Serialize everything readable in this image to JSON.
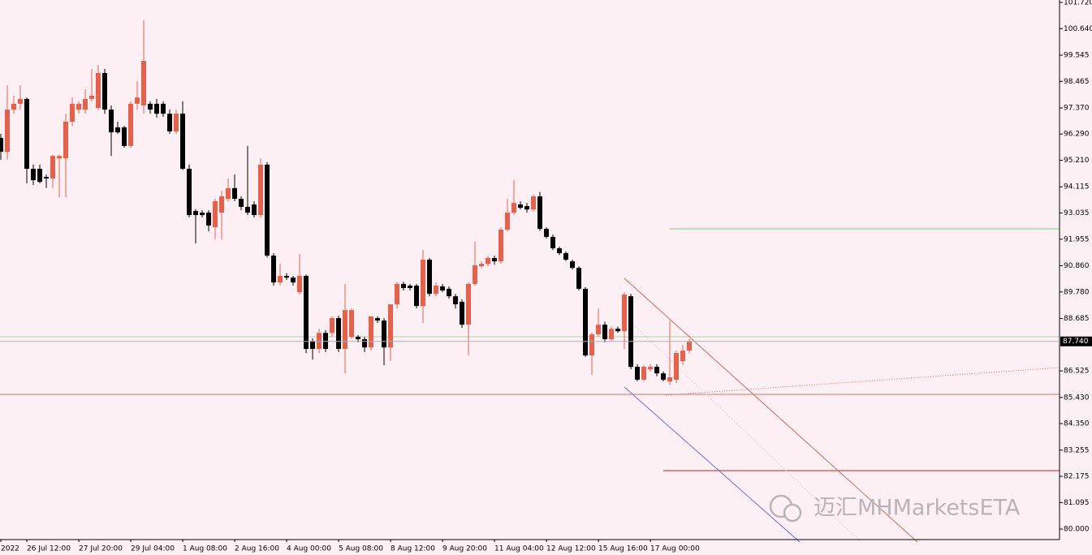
{
  "chart_data": {
    "type": "candlestick",
    "watermark": "迈汇MHMarketsETA",
    "up_color": "#e9604a",
    "down_color": "#000000",
    "ylim": [
      79.566,
      101.82
    ],
    "yticks": [
      {
        "value": 101.72,
        "label": "101.720"
      },
      {
        "value": 100.64,
        "label": "100.640"
      },
      {
        "value": 99.545,
        "label": "99.545"
      },
      {
        "value": 98.465,
        "label": "98.465"
      },
      {
        "value": 97.37,
        "label": "97.370"
      },
      {
        "value": 96.29,
        "label": "96.290"
      },
      {
        "value": 95.21,
        "label": "95.210"
      },
      {
        "value": 94.115,
        "label": "94.115"
      },
      {
        "value": 93.035,
        "label": "93.035"
      },
      {
        "value": 91.955,
        "label": "91.955"
      },
      {
        "value": 90.86,
        "label": "90.860"
      },
      {
        "value": 89.78,
        "label": "89.780"
      },
      {
        "value": 88.685,
        "label": "88.685"
      },
      {
        "value": 86.525,
        "label": "86.525"
      },
      {
        "value": 85.43,
        "label": "85.430"
      },
      {
        "value": 84.35,
        "label": "84.350"
      },
      {
        "value": 83.255,
        "label": "83.255"
      },
      {
        "value": 82.175,
        "label": "82.175"
      },
      {
        "value": 81.095,
        "label": "81.095"
      },
      {
        "value": 80.0,
        "label": "80.000"
      }
    ],
    "last_price": {
      "value": 87.74,
      "label": "87.740"
    },
    "categories": [
      "2022",
      null,
      null,
      null,
      "26 Jul 12:00",
      null,
      null,
      null,
      null,
      null,
      null,
      null,
      "27 Jul 20:00",
      null,
      null,
      null,
      null,
      null,
      null,
      null,
      "29 Jul 04:00",
      null,
      null,
      null,
      null,
      null,
      null,
      null,
      "1 Aug 08:00",
      null,
      null,
      null,
      null,
      null,
      null,
      null,
      "2 Aug 16:00",
      null,
      null,
      null,
      null,
      null,
      null,
      null,
      "4 Aug 00:00",
      null,
      null,
      null,
      null,
      null,
      null,
      null,
      "5 Aug 08:00",
      null,
      null,
      null,
      null,
      null,
      null,
      null,
      "8 Aug 12:00",
      null,
      null,
      null,
      null,
      null,
      null,
      null,
      "9 Aug 20:00",
      null,
      null,
      null,
      null,
      null,
      null,
      null,
      "11 Aug 04:00",
      null,
      null,
      null,
      null,
      null,
      null,
      null,
      "12 Aug 12:00",
      null,
      null,
      null,
      null,
      null,
      null,
      null,
      "15 Aug 16:00",
      null,
      null,
      null,
      null,
      null,
      null,
      null,
      "17 Aug 00:00",
      null,
      null,
      null,
      null,
      null,
      null
    ],
    "ohlc": [
      [
        96.13,
        96.3,
        95.23,
        95.56
      ],
      [
        95.56,
        98.31,
        95.23,
        97.3
      ],
      [
        97.3,
        97.87,
        97.13,
        97.54
      ],
      [
        97.54,
        98.31,
        97.3,
        97.74
      ],
      [
        97.74,
        97.8,
        94.26,
        94.86
      ],
      [
        94.86,
        95.03,
        94.19,
        94.39
      ],
      [
        94.86,
        95.03,
        94.26,
        94.32
      ],
      [
        94.52,
        94.62,
        94.06,
        94.46
      ],
      [
        94.46,
        95.45,
        94.06,
        95.39
      ],
      [
        95.29,
        95.45,
        93.69,
        95.39
      ],
      [
        95.29,
        97.13,
        93.69,
        96.8
      ],
      [
        96.8,
        97.8,
        96.63,
        97.54
      ],
      [
        97.3,
        97.64,
        97.13,
        97.54
      ],
      [
        97.3,
        98.14,
        97.13,
        97.74
      ],
      [
        97.74,
        98.98,
        97.64,
        97.87
      ],
      [
        97.37,
        99.14,
        97.3,
        98.81
      ],
      [
        98.81,
        98.98,
        97.13,
        97.3
      ],
      [
        97.3,
        97.47,
        95.39,
        96.36
      ],
      [
        96.57,
        96.8,
        96.3,
        96.36
      ],
      [
        96.57,
        96.63,
        95.73,
        95.8
      ],
      [
        95.8,
        97.64,
        95.73,
        97.54
      ],
      [
        97.54,
        98.47,
        97.3,
        97.8
      ],
      [
        97.47,
        100.98,
        97.13,
        99.31
      ],
      [
        97.54,
        97.64,
        97.13,
        97.3
      ],
      [
        97.54,
        97.74,
        96.97,
        97.13
      ],
      [
        97.54,
        97.64,
        97.0,
        97.13
      ],
      [
        97.13,
        97.3,
        96.3,
        96.4
      ],
      [
        96.4,
        97.3,
        96.3,
        97.13
      ],
      [
        97.13,
        97.64,
        94.8,
        94.86
      ],
      [
        94.86,
        95.03,
        92.85,
        92.95
      ],
      [
        93.12,
        93.2,
        91.78,
        92.95
      ],
      [
        93.05,
        93.15,
        92.85,
        92.95
      ],
      [
        93.05,
        93.15,
        92.28,
        92.52
      ],
      [
        92.45,
        93.62,
        91.95,
        93.52
      ],
      [
        93.05,
        93.95,
        91.95,
        93.72
      ],
      [
        93.62,
        94.46,
        93.52,
        94.06
      ],
      [
        94.06,
        94.62,
        93.52,
        93.62
      ],
      [
        93.62,
        93.72,
        93.15,
        93.29
      ],
      [
        93.29,
        95.8,
        92.95,
        93.05
      ],
      [
        93.39,
        93.52,
        92.85,
        92.95
      ],
      [
        92.95,
        95.29,
        92.85,
        95.03
      ],
      [
        95.03,
        95.13,
        91.2,
        91.28
      ],
      [
        91.28,
        91.38,
        90.04,
        90.17
      ],
      [
        90.17,
        90.94,
        90.04,
        90.44
      ],
      [
        90.44,
        90.55,
        90.27,
        90.37
      ],
      [
        90.37,
        90.44,
        90.04,
        90.17
      ],
      [
        89.77,
        91.34,
        89.67,
        90.44
      ],
      [
        90.44,
        90.5,
        87.26,
        87.43
      ],
      [
        87.76,
        87.86,
        86.99,
        87.43
      ],
      [
        87.43,
        88.26,
        87.26,
        88.09
      ],
      [
        88.09,
        88.2,
        87.3,
        87.43
      ],
      [
        88.09,
        88.77,
        87.93,
        88.7
      ],
      [
        88.7,
        88.8,
        87.3,
        87.43
      ],
      [
        87.43,
        90.11,
        86.42,
        89.03
      ],
      [
        87.93,
        89.1,
        87.83,
        89.03
      ],
      [
        87.93,
        88.0,
        87.7,
        87.83
      ],
      [
        87.83,
        87.93,
        87.3,
        87.49
      ],
      [
        87.49,
        88.77,
        87.36,
        88.77
      ],
      [
        88.7,
        88.77,
        88.5,
        88.6
      ],
      [
        88.6,
        88.7,
        86.76,
        87.49
      ],
      [
        87.49,
        89.27,
        86.93,
        89.27
      ],
      [
        89.27,
        90.2,
        89.1,
        90.11
      ],
      [
        90.11,
        90.2,
        89.84,
        89.94
      ],
      [
        90.04,
        90.11,
        89.84,
        89.94
      ],
      [
        90.04,
        90.11,
        89.1,
        89.2
      ],
      [
        89.2,
        91.51,
        88.5,
        91.11
      ],
      [
        91.11,
        91.18,
        89.6,
        89.7
      ],
      [
        89.7,
        90.17,
        89.6,
        90.04
      ],
      [
        90.01,
        90.11,
        89.77,
        89.84
      ],
      [
        89.91,
        90.01,
        89.5,
        89.6
      ],
      [
        89.6,
        89.7,
        89.1,
        89.27
      ],
      [
        89.37,
        89.47,
        88.3,
        88.43
      ],
      [
        88.43,
        90.17,
        87.16,
        90.11
      ],
      [
        90.11,
        91.85,
        90.04,
        90.88
      ],
      [
        90.84,
        91.04,
        90.77,
        90.94
      ],
      [
        90.94,
        91.28,
        90.84,
        91.18
      ],
      [
        91.18,
        91.28,
        90.9,
        91.04
      ],
      [
        91.04,
        92.45,
        90.94,
        92.35
      ],
      [
        92.35,
        93.62,
        92.28,
        93.05
      ],
      [
        93.05,
        94.39,
        92.95,
        93.45
      ],
      [
        93.39,
        93.52,
        93.18,
        93.25
      ],
      [
        93.32,
        93.45,
        93.05,
        93.18
      ],
      [
        93.18,
        93.8,
        93.1,
        93.72
      ],
      [
        93.72,
        93.9,
        92.3,
        92.38
      ],
      [
        92.38,
        92.45,
        91.98,
        92.05
      ],
      [
        92.05,
        92.15,
        91.5,
        91.58
      ],
      [
        91.58,
        91.65,
        91.3,
        91.38
      ],
      [
        91.38,
        91.45,
        91.05,
        91.11
      ],
      [
        91.04,
        91.11,
        90.7,
        90.77
      ],
      [
        90.77,
        90.84,
        89.84,
        89.91
      ],
      [
        89.91,
        89.98,
        87.1,
        87.16
      ],
      [
        87.16,
        88.1,
        86.36,
        88.03
      ],
      [
        88.03,
        89.1,
        87.93,
        88.43
      ],
      [
        88.43,
        88.55,
        87.7,
        87.83
      ],
      [
        87.83,
        88.35,
        87.76,
        88.26
      ],
      [
        88.26,
        88.35,
        88.1,
        88.16
      ],
      [
        88.16,
        89.77,
        87.43,
        89.67
      ],
      [
        89.6,
        89.7,
        86.59,
        86.69
      ],
      [
        86.69,
        86.8,
        86.09,
        86.16
      ],
      [
        86.16,
        86.76,
        86.09,
        86.69
      ],
      [
        86.59,
        86.8,
        86.5,
        86.69
      ],
      [
        86.69,
        86.8,
        86.3,
        86.42
      ],
      [
        86.42,
        86.5,
        86.09,
        86.16
      ],
      [
        86.09,
        88.6,
        85.95,
        86.26
      ],
      [
        86.16,
        87.36,
        86.02,
        87.26
      ],
      [
        86.93,
        87.6,
        86.76,
        87.36
      ],
      [
        87.36,
        87.83,
        87.26,
        87.74
      ]
    ]
  }
}
